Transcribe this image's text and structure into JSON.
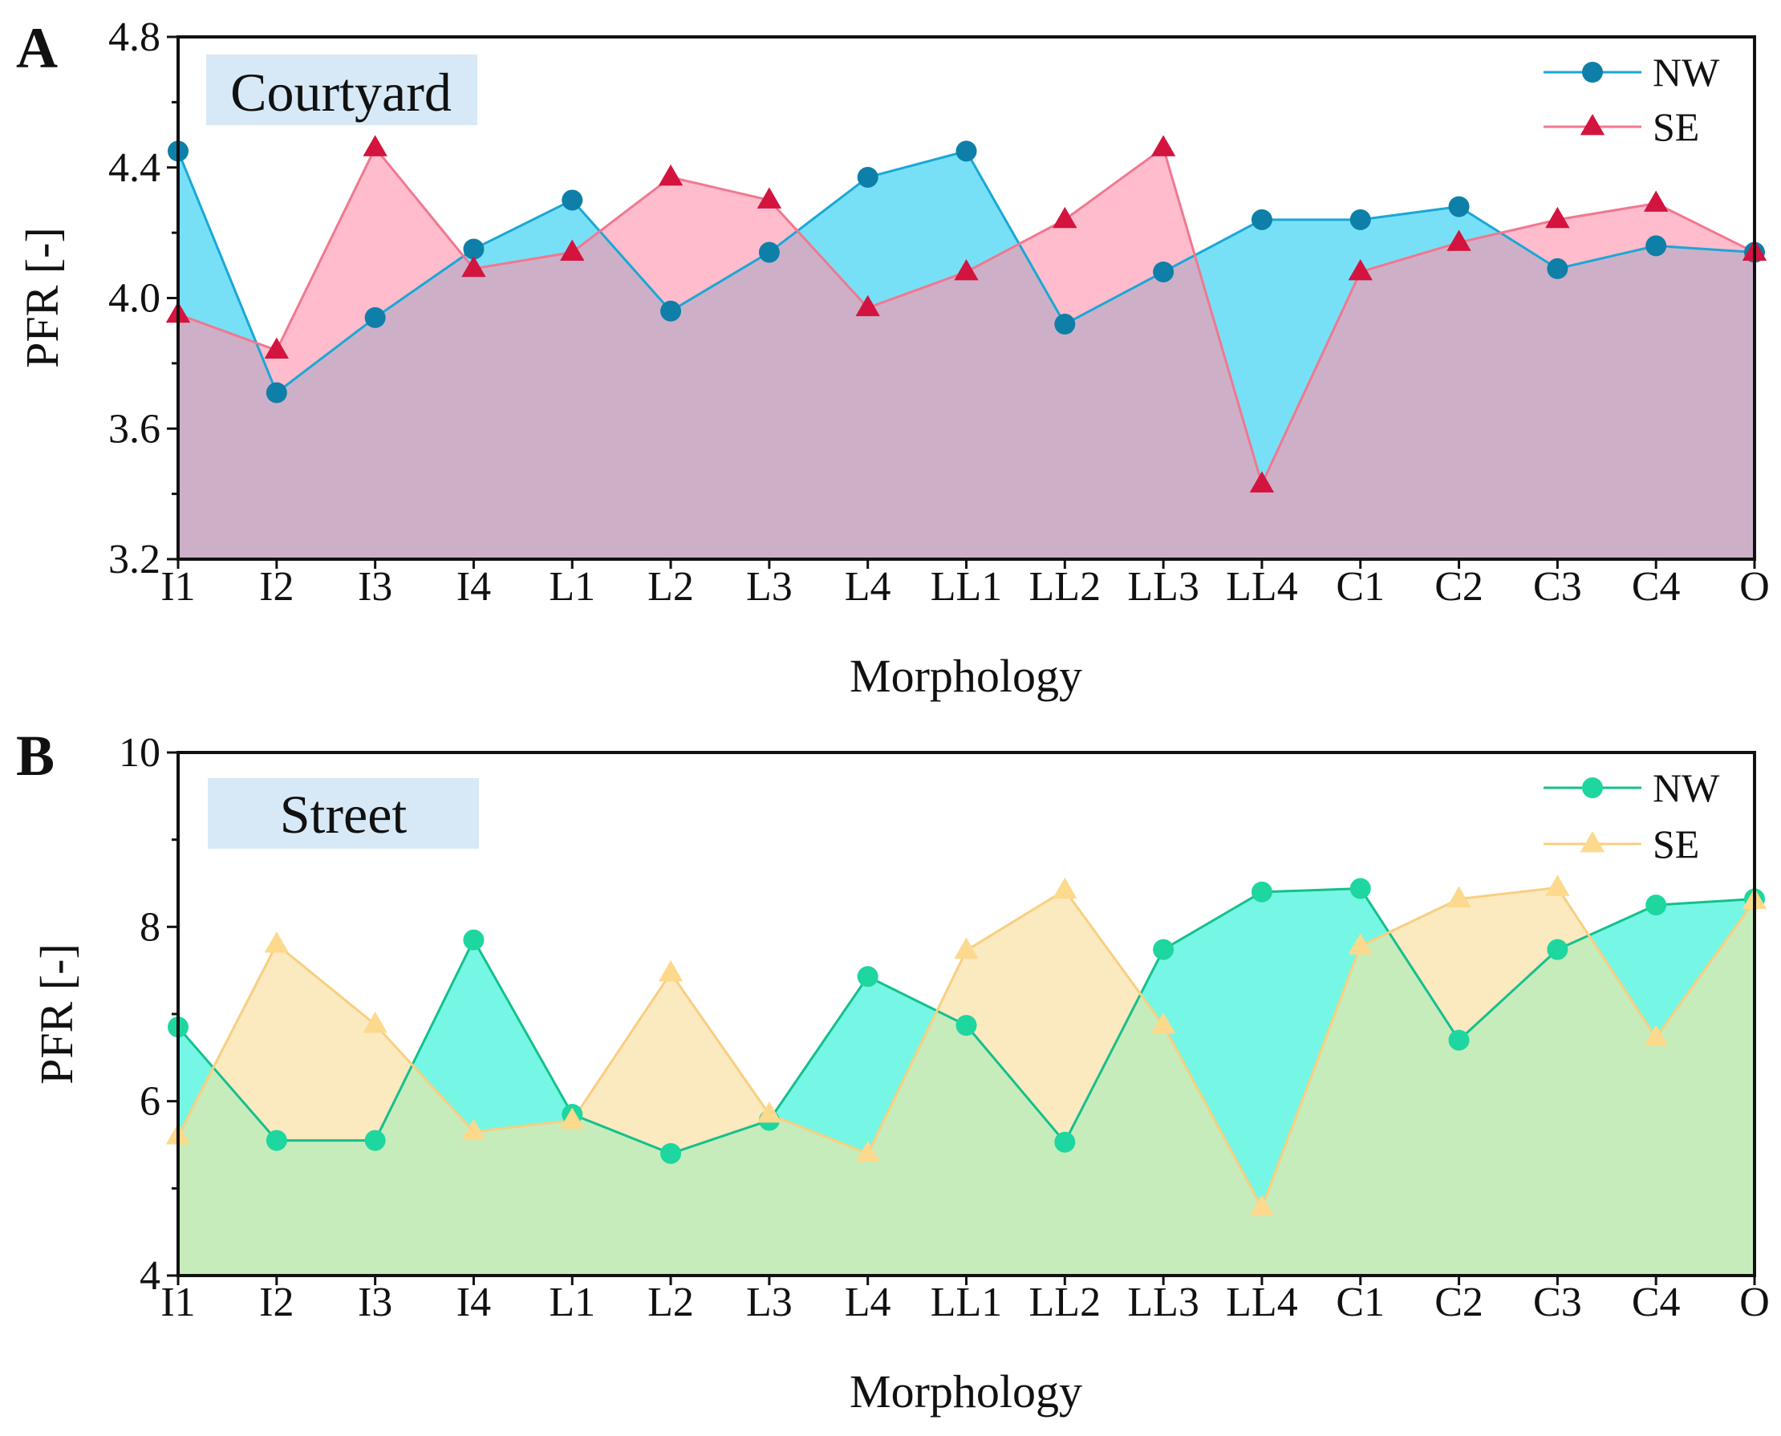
{
  "chart_data": [
    {
      "type": "area",
      "panel_letter": "A",
      "panel_label": "Courtyard",
      "title": "",
      "xlabel": "Morphology",
      "ylabel": "PFR [-]",
      "categories": [
        "I1",
        "I2",
        "I3",
        "I4",
        "L1",
        "L2",
        "L3",
        "L4",
        "LL1",
        "LL2",
        "LL3",
        "LL4",
        "C1",
        "C2",
        "C3",
        "C4",
        "O"
      ],
      "ylim": [
        3.2,
        4.8
      ],
      "yticks": [
        3.2,
        3.6,
        4.0,
        4.4,
        4.8
      ],
      "ytick_labels": [
        "3.2",
        "3.6",
        "4.0",
        "4.4",
        "4.8"
      ],
      "legend_position": "top-right",
      "overlap_color": "#cdb0c8",
      "series": [
        {
          "name": "NW",
          "marker": "circle",
          "line_color": "#1aa7d6",
          "marker_color": "#0e7fa8",
          "fill_color": "#78e0f6",
          "values": [
            4.45,
            3.71,
            3.94,
            4.15,
            4.3,
            3.96,
            4.14,
            4.37,
            4.45,
            3.92,
            4.08,
            4.24,
            4.24,
            4.28,
            4.09,
            4.16,
            4.14
          ]
        },
        {
          "name": "SE",
          "marker": "triangle",
          "line_color": "#f07890",
          "marker_color": "#d2143e",
          "fill_color": "#ffbccc",
          "values": [
            3.95,
            3.84,
            4.46,
            4.09,
            4.14,
            4.37,
            4.3,
            3.97,
            4.08,
            4.24,
            4.46,
            3.43,
            4.08,
            4.17,
            4.24,
            4.29,
            4.14
          ]
        }
      ]
    },
    {
      "type": "area",
      "panel_letter": "B",
      "panel_label": "Street",
      "title": "",
      "xlabel": "Morphology",
      "ylabel": "PFR [-]",
      "categories": [
        "I1",
        "I2",
        "I3",
        "I4",
        "L1",
        "L2",
        "L3",
        "L4",
        "LL1",
        "LL2",
        "LL3",
        "LL4",
        "C1",
        "C2",
        "C3",
        "C4",
        "O"
      ],
      "ylim": [
        4,
        10
      ],
      "yticks": [
        4,
        6,
        8,
        10
      ],
      "ytick_labels": [
        "4",
        "6",
        "8",
        "10"
      ],
      "legend_position": "top-right",
      "overlap_color": "#c6ecbc",
      "series": [
        {
          "name": "NW",
          "marker": "circle",
          "line_color": "#14c08c",
          "marker_color": "#1ed6a0",
          "fill_color": "#76f7e5",
          "values": [
            6.85,
            5.55,
            5.55,
            7.85,
            5.85,
            5.4,
            5.78,
            7.43,
            6.87,
            5.53,
            7.74,
            8.4,
            8.44,
            6.7,
            7.74,
            8.25,
            8.32
          ]
        },
        {
          "name": "SE",
          "marker": "triangle",
          "line_color": "#f8cf80",
          "marker_color": "#fcd98c",
          "fill_color": "#fbe9bf",
          "values": [
            5.6,
            7.8,
            6.88,
            5.65,
            5.78,
            7.47,
            5.85,
            5.4,
            7.73,
            8.42,
            6.87,
            4.78,
            7.78,
            8.32,
            8.45,
            6.73,
            8.3
          ]
        }
      ]
    }
  ]
}
